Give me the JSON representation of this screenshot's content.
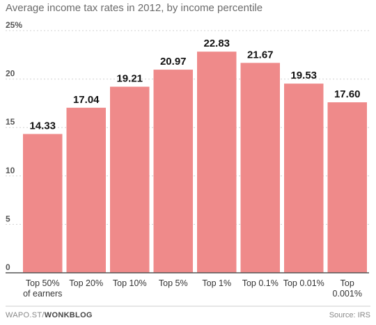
{
  "chart_data": {
    "type": "bar",
    "title": "Average income tax rates in 2012, by income percentile",
    "categories": [
      [
        "Top 50%",
        "of earners"
      ],
      [
        "Top 20%"
      ],
      [
        "Top 10%"
      ],
      [
        "Top 5%"
      ],
      [
        "Top 1%"
      ],
      [
        "Top 0.1%"
      ],
      [
        "Top 0.01%"
      ],
      [
        "Top",
        "0.001%"
      ]
    ],
    "values": [
      14.33,
      17.04,
      19.21,
      20.97,
      22.83,
      21.67,
      19.53,
      17.6
    ],
    "value_labels": [
      "14.33",
      "17.04",
      "19.21",
      "20.97",
      "22.83",
      "21.67",
      "19.53",
      "17.60"
    ],
    "ylim": [
      0,
      25
    ],
    "yticks": [
      0,
      5,
      10,
      15,
      20,
      25
    ],
    "ytick_labels": [
      "0",
      "5",
      "10",
      "15",
      "20",
      "25%"
    ],
    "grid": true,
    "bar_color": "#ef8a8a",
    "grid_color": "#d0d0d0",
    "axis_color": "#555555"
  },
  "footer": {
    "source_left_prefix": "WAPO.ST/",
    "source_left_brand": "WONKBLOG",
    "source_right": "Source: IRS"
  }
}
